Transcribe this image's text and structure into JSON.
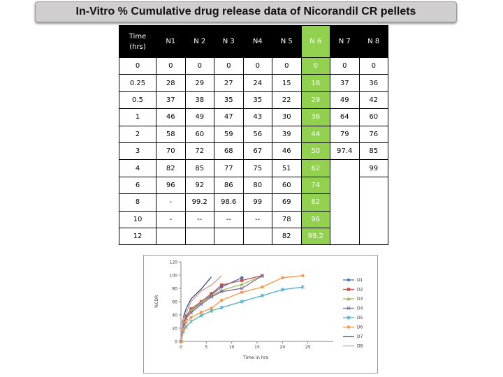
{
  "title": "In-Vitro % Cumulative drug release data of Nicorandil CR pellets",
  "table": {
    "time_header_line1": "Time",
    "time_header_line2": "(hrs)",
    "columns": [
      "N1",
      "N 2",
      "N 3",
      "N4",
      "N 5",
      "N 6",
      "N 7",
      "N 8"
    ],
    "highlight_column": "N 6",
    "rows": [
      {
        "time": "0",
        "cells": [
          "0",
          "0",
          "0",
          "0",
          "0",
          "0",
          "0",
          "0"
        ]
      },
      {
        "time": "0.25",
        "cells": [
          "28",
          "29",
          "27",
          "24",
          "15",
          "18",
          "37",
          "36"
        ]
      },
      {
        "time": "0.5",
        "cells": [
          "37",
          "38",
          "35",
          "35",
          "22",
          "29",
          "49",
          "42"
        ]
      },
      {
        "time": "1",
        "cells": [
          "46",
          "49",
          "47",
          "43",
          "30",
          "36",
          "64",
          "60"
        ]
      },
      {
        "time": "2",
        "cells": [
          "58",
          "60",
          "59",
          "56",
          "39",
          "44",
          "79",
          "76"
        ]
      },
      {
        "time": "3",
        "cells": [
          "70",
          "72",
          "68",
          "67",
          "46",
          "50",
          "97.4",
          "85"
        ]
      },
      {
        "time": "4",
        "cells": [
          "82",
          "85",
          "77",
          "75",
          "51",
          "62",
          "",
          "99"
        ]
      },
      {
        "time": "6",
        "cells": [
          "96",
          "92",
          "86",
          "80",
          "60",
          "74",
          "",
          ""
        ]
      },
      {
        "time": "8",
        "cells": [
          "-",
          "99.2",
          "98.6",
          "99",
          "69",
          "82",
          "",
          ""
        ]
      },
      {
        "time": "10",
        "cells": [
          "-",
          "--",
          "--",
          "--",
          "78",
          "96",
          "",
          ""
        ]
      },
      {
        "time": "12",
        "cells": [
          "",
          "",
          "",
          "",
          "82",
          "99.2",
          "",
          ""
        ]
      }
    ]
  },
  "chart_data": {
    "type": "line",
    "title": "",
    "xlabel": "Time in hrs",
    "ylabel": "%CDR",
    "xlim": [
      0,
      30
    ],
    "ylim": [
      0,
      120
    ],
    "xticks": [
      0,
      5,
      10,
      15,
      20,
      25
    ],
    "yticks": [
      0,
      20,
      40,
      60,
      80,
      100,
      120
    ],
    "series": [
      {
        "name": "D1",
        "color": "#4472c4",
        "marker": "diamond",
        "x": [
          0,
          0.5,
          1,
          2,
          4,
          6,
          8,
          12
        ],
        "y": [
          0,
          28,
          37,
          46,
          58,
          70,
          82,
          96
        ]
      },
      {
        "name": "D2",
        "color": "#c0504d",
        "marker": "square",
        "x": [
          0,
          0.5,
          1,
          2,
          4,
          6,
          8,
          12,
          16
        ],
        "y": [
          0,
          29,
          38,
          49,
          60,
          72,
          85,
          92,
          99.2
        ]
      },
      {
        "name": "D3",
        "color": "#9bbb59",
        "marker": "triangle",
        "x": [
          0,
          0.5,
          1,
          2,
          4,
          6,
          8,
          12,
          16
        ],
        "y": [
          0,
          27,
          35,
          47,
          59,
          68,
          77,
          86,
          98.6
        ]
      },
      {
        "name": "D4",
        "color": "#8064a2",
        "marker": "x",
        "x": [
          0,
          0.5,
          1,
          2,
          4,
          6,
          8,
          12,
          16
        ],
        "y": [
          0,
          24,
          35,
          43,
          56,
          67,
          75,
          80,
          99
        ]
      },
      {
        "name": "D5",
        "color": "#4bacc6",
        "marker": "star",
        "x": [
          0,
          0.5,
          1,
          2,
          4,
          6,
          8,
          12,
          16,
          20,
          24
        ],
        "y": [
          0,
          15,
          22,
          30,
          39,
          46,
          51,
          60,
          69,
          78,
          82
        ]
      },
      {
        "name": "D6",
        "color": "#f79646",
        "marker": "circle",
        "x": [
          0,
          0.5,
          1,
          2,
          4,
          6,
          8,
          12,
          16,
          20,
          24
        ],
        "y": [
          0,
          18,
          29,
          36,
          44,
          50,
          62,
          74,
          82,
          96,
          99.2
        ]
      },
      {
        "name": "D7",
        "color": "#2c4d75",
        "marker": "none",
        "x": [
          0,
          0.5,
          1,
          2,
          4,
          6
        ],
        "y": [
          0,
          37,
          49,
          64,
          79,
          97.4
        ]
      },
      {
        "name": "D8",
        "color": "#d99694",
        "marker": "none",
        "x": [
          0,
          0.5,
          1,
          2,
          4,
          6,
          8
        ],
        "y": [
          0,
          36,
          42,
          60,
          76,
          85,
          99
        ]
      }
    ],
    "legend": "right"
  }
}
